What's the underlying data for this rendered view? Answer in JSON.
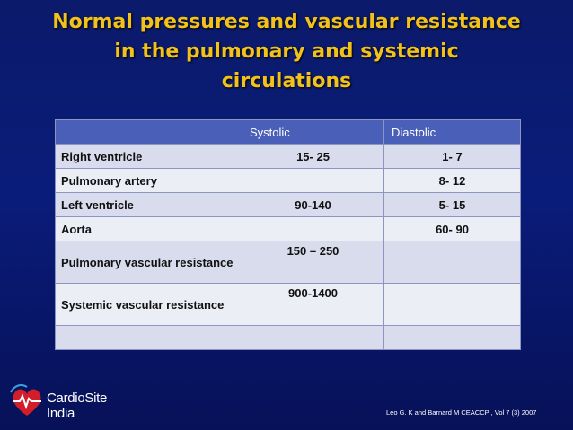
{
  "slide": {
    "title_lines": [
      "Normal pressures and vascular resistance",
      "in the pulmonary and systemic",
      "circulations"
    ],
    "colors": {
      "background": "#0a1c7a",
      "title": "#f3c21a",
      "header": "#4a5fb8"
    }
  },
  "table": {
    "headers": [
      "",
      "Systolic",
      "Diastolic"
    ],
    "rows": [
      [
        "Right ventricle",
        "15- 25",
        "1- 7"
      ],
      [
        "Pulmonary artery",
        "",
        "8- 12"
      ],
      [
        "Left ventricle",
        "90-140",
        "5- 15"
      ],
      [
        "Aorta",
        "",
        "60- 90"
      ],
      [
        "Pulmonary vascular resistance",
        "150 – 250",
        ""
      ],
      [
        "Systemic vascular resistance",
        "900-1400",
        ""
      ],
      [
        "",
        "",
        ""
      ]
    ]
  },
  "logo": {
    "text": "CardioSite India",
    "icon": "heart-icon"
  },
  "citation": "Leo G. K and Barnard M CEACCP , Vol 7 (3) 2007"
}
